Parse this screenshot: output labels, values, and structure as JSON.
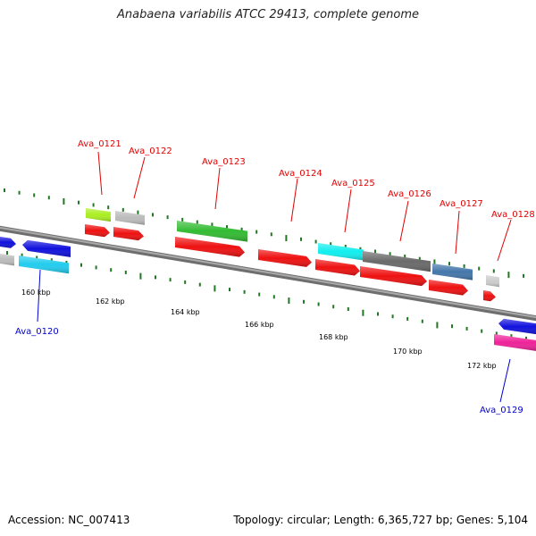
{
  "title": "Anabaena variabilis ATCC 29413, complete genome",
  "footer": {
    "accession": "Accession: NC_007413",
    "summary": "Topology: circular; Length: 6,365,727 bp; Genes: 5,104"
  },
  "scale_labels": [
    "160 kbp",
    "162 kbp",
    "164 kbp",
    "166 kbp",
    "168 kbp",
    "170 kbp",
    "172 kbp"
  ],
  "gene_labels_forward": [
    "Ava_0121",
    "Ava_0122",
    "Ava_0123",
    "Ava_0124",
    "Ava_0125",
    "Ava_0126",
    "Ava_0127",
    "Ava_0128"
  ],
  "gene_labels_reverse": [
    "Ava_0120",
    "Ava_0129"
  ],
  "colors": {
    "backbone": "#8a8a8a",
    "cds": "#ee1111",
    "tick": "#227722",
    "label_forward": "#e00000",
    "label_reverse": "#0000cc"
  }
}
